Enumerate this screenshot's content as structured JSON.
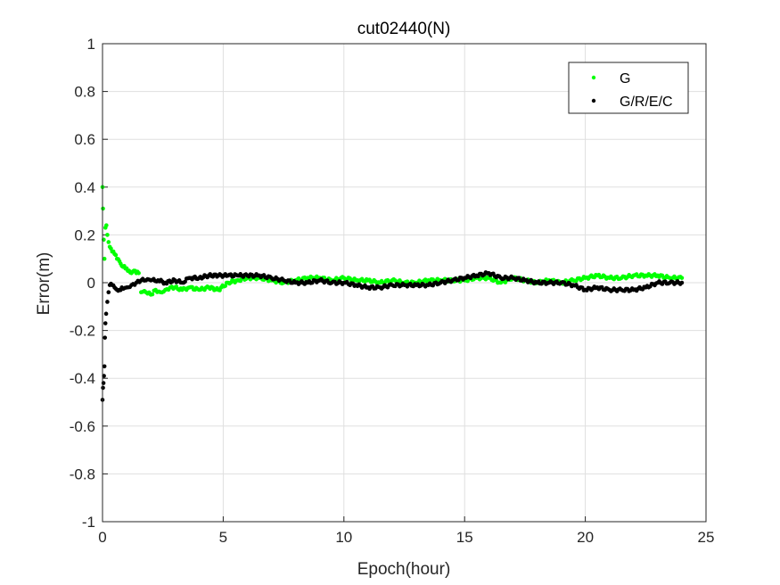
{
  "chart_data": {
    "type": "scatter",
    "title": "cut02440(N)",
    "xlabel": "Epoch(hour)",
    "ylabel": "Error(m)",
    "xlim": [
      0,
      25
    ],
    "ylim": [
      -1,
      1
    ],
    "xticks": [
      "0",
      "5",
      "10",
      "15",
      "20",
      "25"
    ],
    "yticks": [
      "-1",
      "-0.8",
      "-0.6",
      "-0.4",
      "-0.2",
      "0",
      "0.2",
      "0.4",
      "0.6",
      "0.8",
      "1"
    ],
    "grid": true,
    "legend_position": "top-right",
    "series": [
      {
        "name": "G",
        "color": "#00ff00",
        "x": [
          0.0,
          0.02,
          0.05,
          0.08,
          0.12,
          0.16,
          0.2,
          0.25,
          0.3,
          0.4,
          0.5,
          0.6,
          0.7,
          0.8,
          0.9,
          1.0,
          1.1,
          1.2,
          1.3,
          1.4,
          1.5,
          1.6,
          1.8,
          2.0,
          2.2,
          2.4,
          2.6,
          2.8,
          3.0,
          3.3,
          3.6,
          4.0,
          4.4,
          4.8,
          5.2,
          5.6,
          6.0,
          6.5,
          7.0,
          7.5,
          8.0,
          8.5,
          9.0,
          9.5,
          10.0,
          10.5,
          11.0,
          11.5,
          12.0,
          12.5,
          13.0,
          13.5,
          14.0,
          14.5,
          15.0,
          15.5,
          16.0,
          16.5,
          17.0,
          17.5,
          18.0,
          18.5,
          19.0,
          19.5,
          20.0,
          20.5,
          21.0,
          21.5,
          22.0,
          22.5,
          23.0,
          23.5,
          24.0
        ],
        "y": [
          0.4,
          0.31,
          0.18,
          0.1,
          0.23,
          0.24,
          0.2,
          0.17,
          0.15,
          0.13,
          0.12,
          0.1,
          0.09,
          0.07,
          0.07,
          0.06,
          0.05,
          0.04,
          0.05,
          0.04,
          0.04,
          -0.04,
          -0.04,
          -0.05,
          -0.03,
          -0.04,
          -0.03,
          -0.02,
          -0.02,
          -0.03,
          -0.02,
          -0.03,
          -0.02,
          -0.03,
          0.0,
          0.01,
          0.02,
          0.02,
          0.01,
          0.0,
          0.01,
          0.02,
          0.02,
          0.01,
          0.02,
          0.01,
          0.01,
          0.0,
          0.01,
          0.0,
          0.0,
          0.01,
          0.01,
          0.01,
          0.01,
          0.02,
          0.02,
          0.0,
          0.02,
          0.01,
          0.0,
          0.01,
          0.0,
          0.01,
          0.02,
          0.03,
          0.02,
          0.02,
          0.03,
          0.03,
          0.03,
          0.02,
          0.02
        ]
      },
      {
        "name": "G/R/E/C",
        "color": "#000000",
        "x": [
          0.0,
          0.02,
          0.04,
          0.06,
          0.08,
          0.1,
          0.12,
          0.15,
          0.2,
          0.25,
          0.3,
          0.4,
          0.5,
          0.6,
          0.7,
          0.8,
          1.0,
          1.2,
          1.4,
          1.6,
          1.8,
          2.0,
          2.3,
          2.6,
          3.0,
          3.3,
          3.6,
          4.0,
          4.4,
          4.8,
          5.2,
          5.6,
          6.0,
          6.5,
          7.0,
          7.5,
          8.0,
          8.5,
          9.0,
          9.5,
          10.0,
          10.5,
          11.0,
          11.5,
          12.0,
          12.5,
          13.0,
          13.5,
          14.0,
          14.5,
          15.0,
          15.5,
          16.0,
          16.5,
          17.0,
          17.5,
          18.0,
          18.5,
          19.0,
          19.5,
          20.0,
          20.5,
          21.0,
          21.5,
          22.0,
          22.5,
          23.0,
          23.5,
          24.0
        ],
        "y": [
          -0.49,
          -0.44,
          -0.42,
          -0.39,
          -0.35,
          -0.23,
          -0.17,
          -0.13,
          -0.08,
          -0.04,
          -0.01,
          -0.01,
          -0.02,
          -0.03,
          -0.03,
          -0.02,
          -0.02,
          -0.01,
          0.0,
          0.01,
          0.01,
          0.01,
          0.01,
          0.0,
          0.01,
          0.0,
          0.02,
          0.02,
          0.03,
          0.03,
          0.03,
          0.03,
          0.03,
          0.03,
          0.02,
          0.01,
          0.0,
          0.0,
          0.01,
          0.0,
          0.0,
          -0.01,
          -0.02,
          -0.02,
          -0.01,
          -0.01,
          -0.01,
          -0.01,
          0.0,
          0.01,
          0.02,
          0.03,
          0.04,
          0.02,
          0.02,
          0.01,
          0.0,
          0.0,
          0.0,
          -0.01,
          -0.03,
          -0.02,
          -0.03,
          -0.03,
          -0.03,
          -0.02,
          0.0,
          0.0,
          0.0
        ]
      }
    ]
  }
}
